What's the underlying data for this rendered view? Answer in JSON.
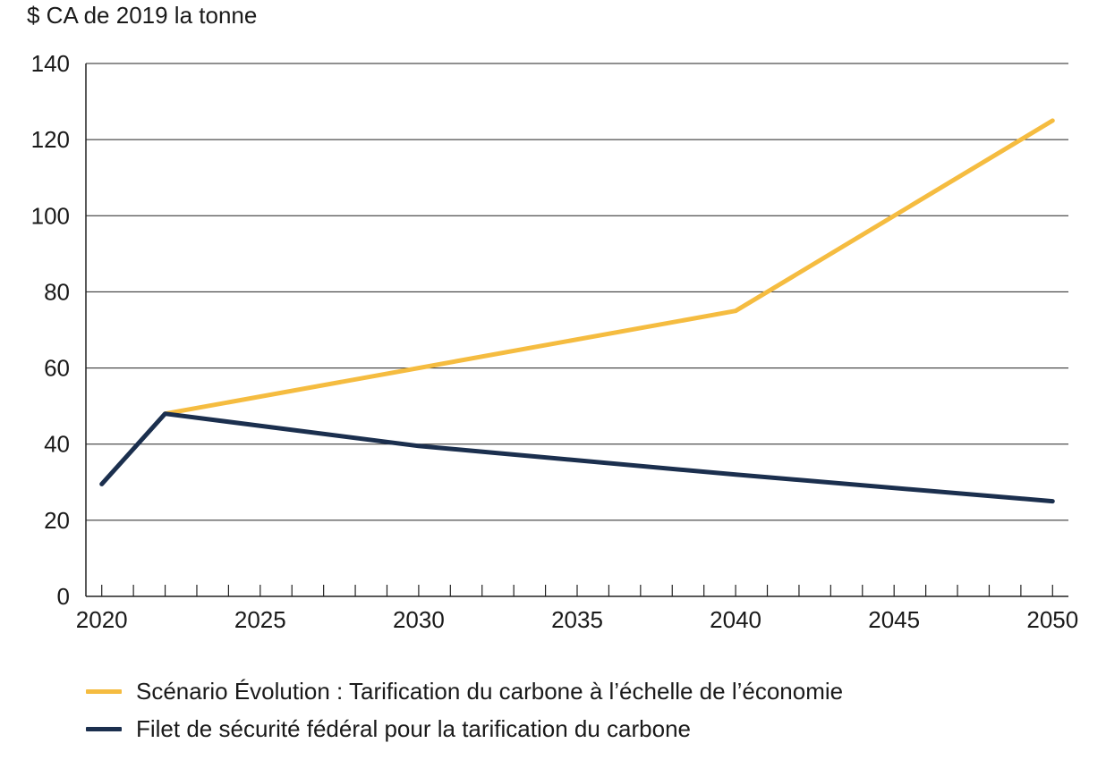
{
  "chart_data": {
    "type": "line",
    "ylabel": "$ CA de 2019 la tonne",
    "xlim": [
      2019.5,
      2050.5
    ],
    "ylim": [
      0,
      140
    ],
    "x_ticks": [
      2020,
      2025,
      2030,
      2035,
      2040,
      2045,
      2050
    ],
    "y_ticks": [
      0,
      20,
      40,
      60,
      80,
      100,
      120,
      140
    ],
    "grid": "horizontal",
    "legend_position": "bottom",
    "series": [
      {
        "name": "Scénario Évolution : Tarification du carbone à l’échelle de l’économie",
        "color": "#F5BC40",
        "points": [
          [
            2022,
            48
          ],
          [
            2040,
            75
          ],
          [
            2050,
            125
          ]
        ]
      },
      {
        "name": "Filet de sécurité fédéral pour la tarification du carbone",
        "color": "#1B2F4E",
        "points": [
          [
            2020,
            29.5
          ],
          [
            2022,
            48
          ],
          [
            2030,
            39.5
          ],
          [
            2040,
            32
          ],
          [
            2050,
            25
          ]
        ]
      }
    ]
  }
}
